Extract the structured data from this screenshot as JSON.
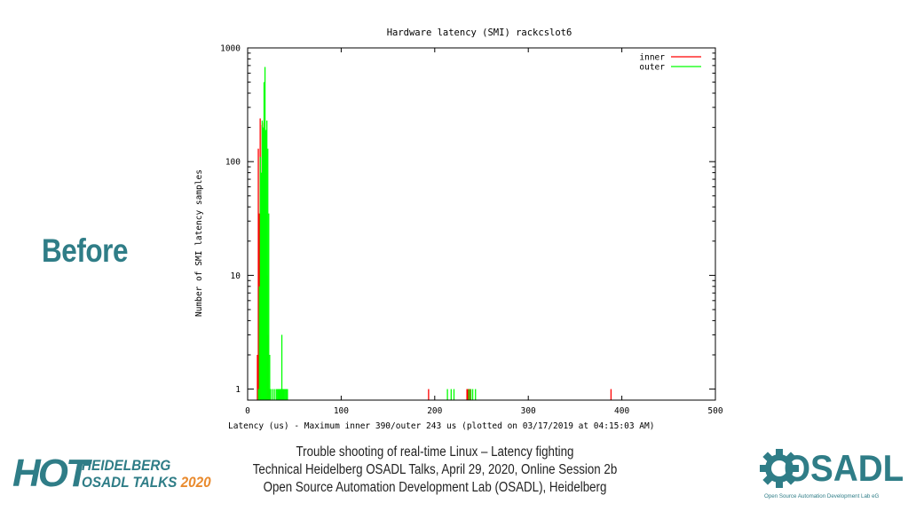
{
  "slide": {
    "heading": "Before"
  },
  "footer": {
    "line1": "Trouble shooting of real-time Linux – Latency fighting",
    "line2": "Technical Heidelberg OSADL Talks, April 29, 2020, Online Session 2b",
    "line3": "Open Source Automation Development Lab (OSADL), Heidelberg"
  },
  "logos": {
    "hot": {
      "letters": "HOT",
      "line1": "HEIDELBERG",
      "line2": "OSADL TALKS",
      "year": "2020",
      "colors": {
        "teal": "#2f7d87",
        "orange": "#e98a2d"
      }
    },
    "osadl": {
      "word": "OSADL",
      "subtitle": "Open Source Automation Development Lab eG",
      "icon": "gear-icon",
      "color": "#2f7d87"
    }
  },
  "chart_data": {
    "type": "bar",
    "title": "Hardware latency (SMI) rackcslot6",
    "xlabel": "Latency (us) - Maximum inner 390/outer 243 us (plotted on 03/17/2019 at 04:15:03 AM)",
    "ylabel": "Number of SMI latency samples",
    "xlim": [
      0,
      500
    ],
    "ylim": [
      0.8,
      1000
    ],
    "yscale": "log",
    "xticks": [
      "0",
      "100",
      "200",
      "300",
      "400",
      "500"
    ],
    "yticks": [
      "1",
      "10",
      "100",
      "1000"
    ],
    "grid": false,
    "legend_position": "top-right",
    "series": [
      {
        "name": "inner",
        "color": "#ff0000",
        "x": [
          11,
          12,
          13,
          14,
          15,
          16,
          17,
          18,
          19,
          20,
          21,
          22,
          23,
          194,
          235,
          236,
          237,
          238,
          389
        ],
        "y": [
          2,
          130,
          35,
          240,
          12,
          210,
          180,
          220,
          120,
          35,
          10,
          3,
          1,
          1,
          1,
          1,
          1,
          1,
          1
        ]
      },
      {
        "name": "outer",
        "color": "#00ff00",
        "x": [
          11,
          12,
          13,
          14,
          15,
          16,
          17,
          18,
          19,
          20,
          21,
          22,
          23,
          24,
          26,
          28,
          30,
          31,
          32,
          33,
          34,
          35,
          36,
          37,
          38,
          39,
          40,
          41,
          42,
          213,
          217,
          220,
          236,
          238,
          240,
          243
        ],
        "y": [
          1,
          8,
          110,
          80,
          230,
          200,
          500,
          680,
          190,
          230,
          130,
          35,
          2,
          1,
          1,
          1,
          1,
          1,
          1,
          1,
          1,
          1,
          3,
          1,
          1,
          1,
          1,
          1,
          1,
          1,
          1,
          1,
          1,
          1,
          1,
          1
        ]
      }
    ]
  }
}
